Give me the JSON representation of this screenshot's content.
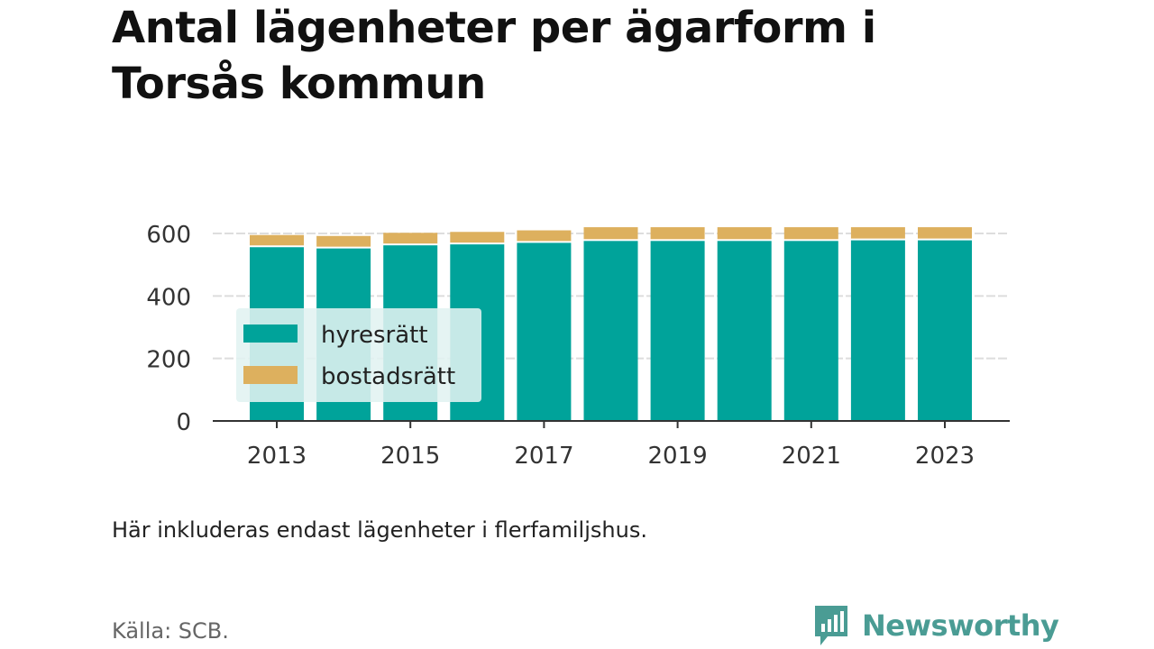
{
  "title": "Antal lägenheter per ägarform i\nTorsås kommun",
  "note": "Här inkluderas endast lägenheter i flerfamiljshus.",
  "source": "Källa: SCB.",
  "brand": {
    "name": "Newsworthy",
    "icon": "newsworthy-logo-icon",
    "color": "#4a9c94"
  },
  "colors": {
    "hyresratt": "#00a39a",
    "bostadsratt": "#ddb05e",
    "grid": "#dddddd",
    "axis": "#333333",
    "legend_bg": "rgba(225,242,241,0.88)"
  },
  "chart_data": {
    "type": "bar",
    "stacked": true,
    "categories": [
      "2013",
      "2014",
      "2015",
      "2016",
      "2017",
      "2018",
      "2019",
      "2020",
      "2021",
      "2022",
      "2023"
    ],
    "series": [
      {
        "name": "hyresrätt",
        "values": [
          556,
          552,
          562,
          565,
          570,
          576,
          576,
          576,
          576,
          578,
          578
        ]
      },
      {
        "name": "bostadsrätt",
        "values": [
          39,
          40,
          40,
          40,
          40,
          44,
          44,
          44,
          44,
          42,
          42
        ]
      }
    ],
    "x_tick_labels": [
      "2013",
      "2015",
      "2017",
      "2019",
      "2021",
      "2023"
    ],
    "y_ticks": [
      0,
      200,
      400,
      600
    ],
    "ylim": [
      0,
      600
    ],
    "grid": true,
    "legend": "inside-left",
    "xlabel": "",
    "ylabel": ""
  }
}
